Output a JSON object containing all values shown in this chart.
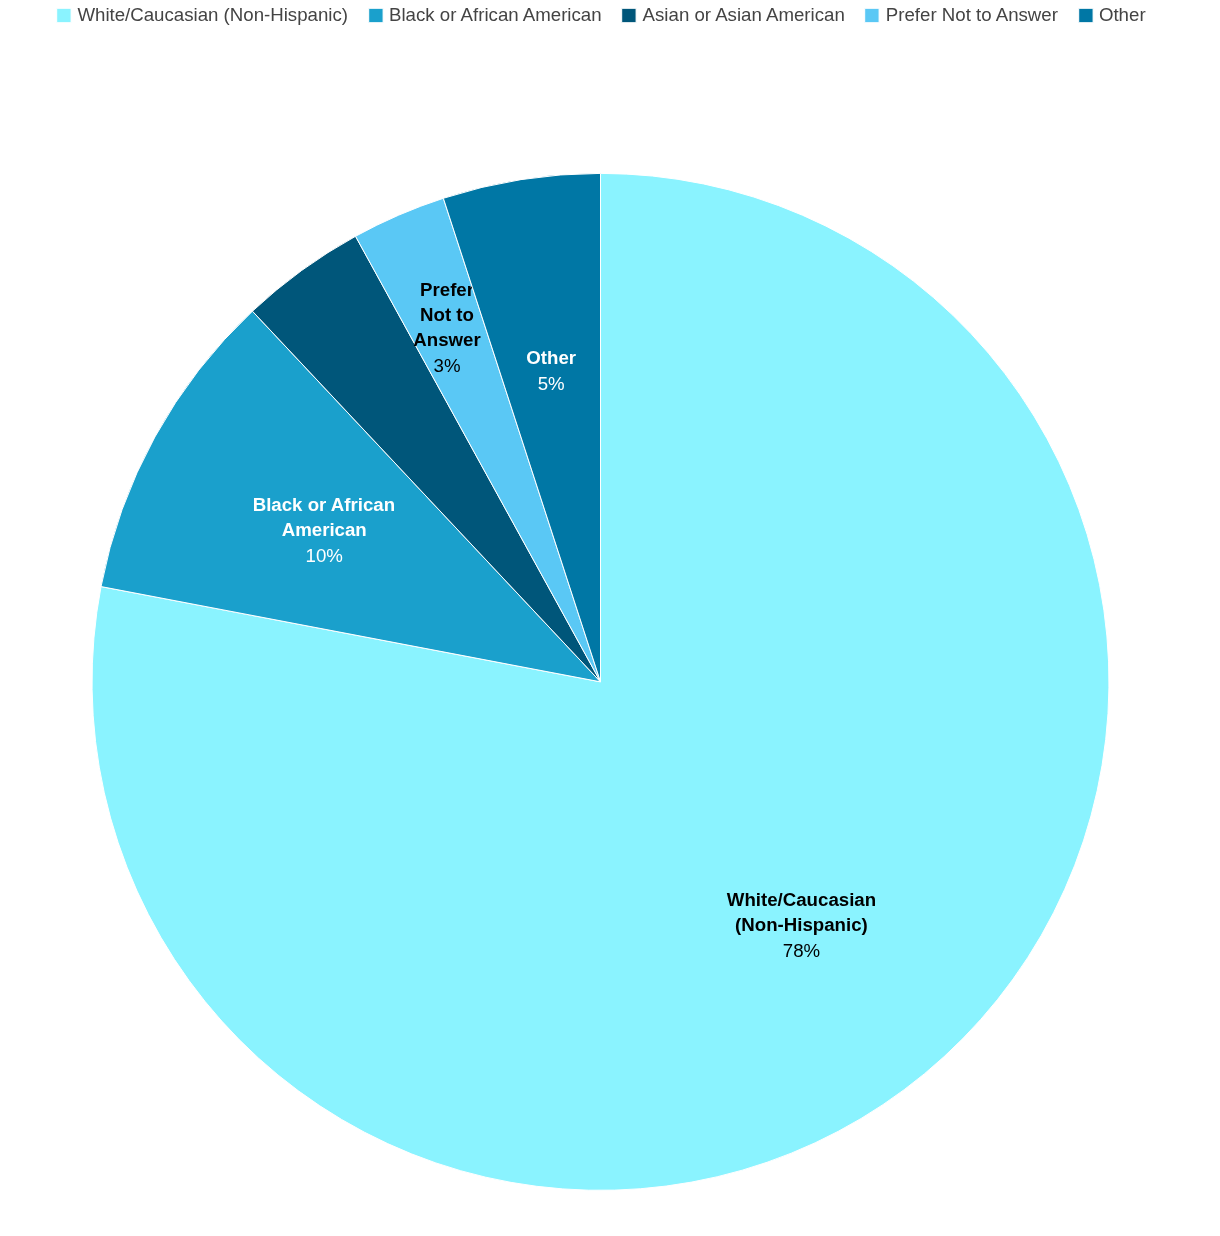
{
  "chart_data": {
    "type": "pie",
    "categories": [
      "White/Caucasian (Non-Hispanic)",
      "Black or African American",
      "Asian or Asian American",
      "Prefer Not to Answer",
      "Other"
    ],
    "values": [
      78,
      10,
      4,
      3,
      5
    ],
    "value_labels": [
      "78%",
      "10%",
      null,
      "3%",
      "5%"
    ],
    "colors": [
      "#8af3ff",
      "#1aa0cc",
      "#00567a",
      "#5ac8f5",
      "#0077a5"
    ],
    "legend": "top"
  }
}
